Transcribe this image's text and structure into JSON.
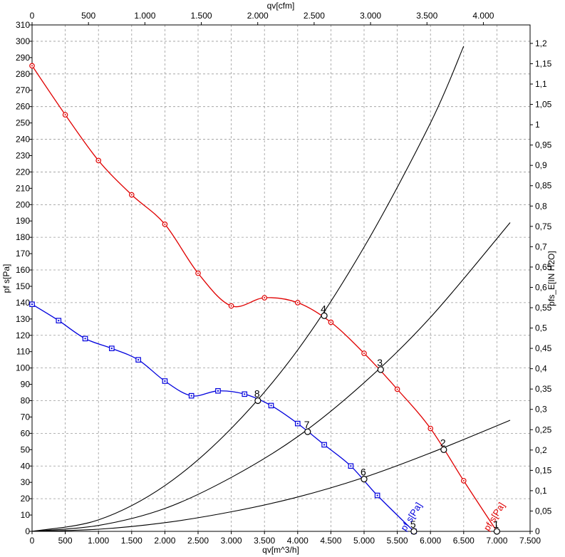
{
  "chart_data": {
    "type": "line",
    "x_axis_bottom": {
      "label": "qv[m^3/h]",
      "range": [
        0,
        7500
      ],
      "ticks": [
        0,
        500,
        1000,
        1500,
        2000,
        2500,
        3000,
        3500,
        4000,
        4500,
        5000,
        5500,
        6000,
        6500,
        7000,
        7500
      ],
      "tick_labels": [
        "0",
        "500",
        "1.000",
        "1.500",
        "2.000",
        "2.500",
        "3.000",
        "3.500",
        "4.000",
        "4.500",
        "5.000",
        "5.500",
        "6.000",
        "6.500",
        "7.000",
        "7.500"
      ]
    },
    "x_axis_top": {
      "label": "qv[cfm]",
      "range": [
        0,
        4414
      ],
      "ticks": [
        0,
        500,
        1000,
        1500,
        2000,
        2500,
        3000,
        3500,
        4000
      ],
      "tick_labels": [
        "0",
        "500",
        "1.000",
        "1.500",
        "2.000",
        "2.500",
        "3.000",
        "3.500",
        "4.000"
      ]
    },
    "y_axis_left": {
      "label": "pf s[Pa]",
      "range": [
        0,
        310
      ],
      "ticks": [
        0,
        10,
        20,
        30,
        40,
        50,
        60,
        70,
        80,
        90,
        100,
        110,
        120,
        130,
        140,
        150,
        160,
        170,
        180,
        190,
        200,
        210,
        220,
        230,
        240,
        250,
        260,
        270,
        280,
        290,
        300,
        310
      ],
      "tick_labels": [
        "0",
        "10",
        "20",
        "30",
        "40",
        "50",
        "60",
        "70",
        "80",
        "90",
        "100",
        "110",
        "120",
        "130",
        "140",
        "150",
        "160",
        "170",
        "180",
        "190",
        "200",
        "210",
        "220",
        "230",
        "240",
        "250",
        "260",
        "270",
        "280",
        "290",
        "300",
        "310"
      ]
    },
    "y_axis_right": {
      "label": "pfs_E[IN H2O]",
      "range": [
        0,
        1.2454
      ],
      "ticks": [
        0,
        0.05,
        0.1,
        0.15,
        0.2,
        0.25,
        0.3,
        0.35,
        0.4,
        0.45,
        0.5,
        0.55,
        0.6,
        0.65,
        0.7,
        0.75,
        0.8,
        0.85,
        0.9,
        0.95,
        1.0,
        1.05,
        1.1,
        1.15,
        1.2
      ],
      "tick_labels": [
        "0",
        "0,05",
        "0,1",
        "0,15",
        "0,2",
        "0,25",
        "0,3",
        "0,35",
        "0,4",
        "0,45",
        "0,5",
        "0,55",
        "0,6",
        "0,65",
        "0,7",
        "0,75",
        "0,8",
        "0,85",
        "0,9",
        "0,95",
        "1",
        "1,05",
        "1,1",
        "1,15",
        "1,2"
      ]
    },
    "grid": true,
    "series": [
      {
        "name": "pf s[Pa]",
        "color": "#e00000",
        "marker": "circle",
        "x": [
          0,
          500,
          1000,
          1500,
          2000,
          2500,
          3000,
          3500,
          4000,
          4500,
          5000,
          5500,
          6000,
          6500,
          7000
        ],
        "y": [
          285,
          255,
          227,
          206,
          188,
          158,
          138,
          143,
          140,
          128,
          109,
          87,
          63,
          31,
          0
        ]
      },
      {
        "name": "pf s[Pa]",
        "color": "#0000dd",
        "marker": "square",
        "x": [
          0,
          400,
          800,
          1200,
          1600,
          2000,
          2400,
          2800,
          3200,
          3600,
          4000,
          4400,
          4800,
          5200,
          5750
        ],
        "y": [
          139,
          129,
          118,
          112,
          105,
          92,
          83,
          86,
          84,
          77,
          66,
          53,
          40,
          22,
          0
        ]
      }
    ],
    "system_curves": [
      {
        "color": "#000000",
        "x": [
          0,
          1000,
          2000,
          3000,
          4000,
          5000,
          6000,
          6500
        ],
        "y": [
          0,
          7,
          28,
          63,
          111,
          174,
          250,
          297
        ]
      },
      {
        "color": "#000000",
        "x": [
          0,
          1000,
          2000,
          3000,
          4000,
          5000,
          6000,
          7200
        ],
        "y": [
          0,
          3.6,
          14,
          33,
          58,
          91,
          131,
          189
        ]
      },
      {
        "color": "#000000",
        "x": [
          0,
          1000,
          2000,
          3000,
          4000,
          5000,
          6000,
          7200
        ],
        "y": [
          0,
          1.3,
          5.3,
          12,
          21,
          33,
          48,
          68
        ]
      }
    ],
    "operating_points": [
      {
        "label": "1",
        "x": 7000,
        "y": 0
      },
      {
        "label": "2",
        "x": 6200,
        "y": 50
      },
      {
        "label": "3",
        "x": 5250,
        "y": 99
      },
      {
        "label": "4",
        "x": 4400,
        "y": 132
      },
      {
        "label": "5",
        "x": 5750,
        "y": 0
      },
      {
        "label": "6",
        "x": 5000,
        "y": 32
      },
      {
        "label": "7",
        "x": 4150,
        "y": 61
      },
      {
        "label": "8",
        "x": 3400,
        "y": 80
      }
    ],
    "curve_tags": [
      {
        "text": "pf s[Pa]",
        "x": 7000,
        "y": 8,
        "color": "#e00000"
      },
      {
        "text": "pf s[Pa]",
        "x": 5750,
        "y": 8,
        "color": "#0000dd"
      }
    ]
  }
}
